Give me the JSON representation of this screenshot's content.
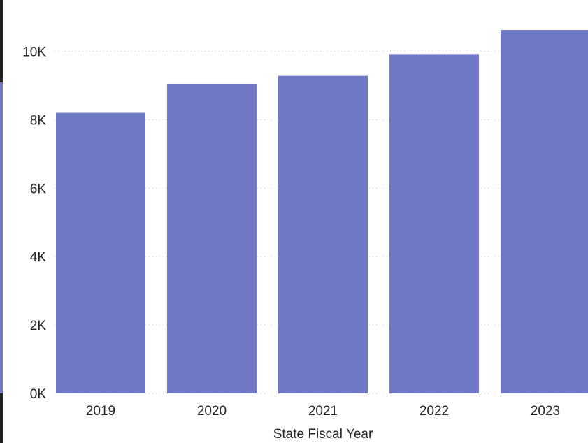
{
  "colors": {
    "bar": "#6f78c2",
    "gridline": "#c8c8c8",
    "text": "#252423",
    "frame_border": "#222222"
  },
  "chart_data": {
    "type": "bar",
    "title": "",
    "xlabel": "State Fiscal Year",
    "ylabel": "",
    "categories": [
      "2019",
      "2020",
      "2021",
      "2022",
      "2023"
    ],
    "values": [
      8200,
      9050,
      9280,
      9920,
      10620
    ],
    "ylim": [
      0,
      11500
    ],
    "yticks": [
      0,
      2000,
      4000,
      6000,
      8000,
      10000
    ],
    "ytick_labels": [
      "0K",
      "2K",
      "4K",
      "6K",
      "8K",
      "10K"
    ],
    "grid": "horizontal-dotted",
    "legend": "none"
  }
}
